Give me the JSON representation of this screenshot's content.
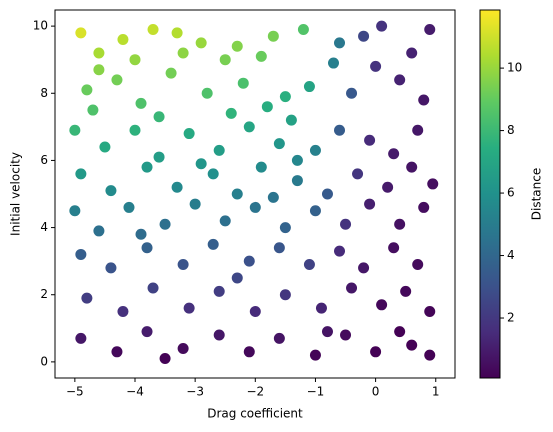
{
  "chart_data": {
    "type": "scatter",
    "xlabel": "Drag coefficient",
    "ylabel": "Initial velocity",
    "colorbar_label": "Distance",
    "colormap": "viridis",
    "x": [
      -4.9,
      -4.6,
      -4.2,
      -3.7,
      -3.3,
      -2.9,
      -2.3,
      -1.7,
      -1.2,
      -0.6,
      -0.2,
      0.1,
      0.6,
      0.9,
      -4.8,
      -4.3,
      -3.9,
      -3.4,
      -2.8,
      -2.2,
      -1.8,
      -1.4,
      -1.1,
      -0.7,
      -0.4,
      0.0,
      0.4,
      0.8,
      -5.0,
      -4.5,
      -4.0,
      -3.6,
      -3.1,
      -2.6,
      -2.1,
      -1.6,
      -1.0,
      -0.6,
      -0.1,
      0.3,
      0.7,
      -4.9,
      -4.4,
      -3.8,
      -3.3,
      -2.7,
      -2.3,
      -1.9,
      -1.3,
      -0.8,
      -0.3,
      0.2,
      0.6,
      0.95,
      -5.0,
      -4.6,
      -4.1,
      -3.5,
      -3.0,
      -2.5,
      -2.0,
      -1.5,
      -1.0,
      -0.5,
      -0.1,
      0.4,
      0.8,
      -4.9,
      -4.4,
      -3.8,
      -3.2,
      -2.7,
      -2.1,
      -1.6,
      -1.1,
      -0.6,
      -0.2,
      0.3,
      0.7,
      -4.8,
      -4.2,
      -3.7,
      -3.1,
      -2.6,
      -2.0,
      -1.5,
      -0.9,
      -0.4,
      0.1,
      0.5,
      0.9,
      -4.9,
      -4.3,
      -3.8,
      -3.2,
      -2.6,
      -2.1,
      -1.6,
      -1.0,
      -0.5,
      0.0,
      0.4,
      0.9,
      -4.6,
      -4.0,
      -3.2,
      -2.5,
      -1.9,
      -1.5,
      -1.3,
      -2.4,
      -3.6,
      -4.7,
      -2.9,
      -1.7,
      -3.9,
      -2.3,
      -0.8,
      0.6,
      -3.5
    ],
    "values": [
      9.8,
      8.7,
      9.6,
      9.9,
      9.8,
      9.5,
      9.4,
      9.7,
      9.9,
      9.5,
      9.7,
      10.0,
      9.2,
      9.9,
      8.1,
      8.4,
      7.7,
      8.6,
      8.0,
      8.3,
      7.6,
      7.2,
      8.2,
      8.9,
      8.0,
      8.8,
      8.4,
      7.8,
      6.9,
      6.4,
      6.9,
      6.1,
      6.8,
      6.3,
      7.0,
      6.5,
      6.3,
      6.9,
      6.6,
      6.2,
      6.9,
      5.6,
      5.1,
      5.8,
      5.2,
      5.6,
      5.0,
      5.8,
      5.4,
      5.0,
      5.6,
      5.2,
      5.8,
      5.3,
      4.5,
      3.9,
      4.6,
      4.1,
      4.7,
      4.2,
      4.6,
      4.0,
      4.5,
      4.1,
      4.7,
      4.1,
      4.6,
      3.2,
      2.8,
      3.4,
      2.9,
      3.5,
      3.0,
      3.4,
      2.9,
      3.3,
      2.8,
      3.4,
      2.9,
      1.9,
      1.5,
      2.2,
      1.6,
      2.1,
      1.5,
      2.0,
      1.6,
      2.2,
      1.7,
      2.1,
      1.5,
      0.7,
      0.3,
      0.9,
      0.4,
      0.8,
      0.3,
      0.7,
      0.2,
      0.8,
      0.3,
      0.9,
      0.2,
      9.2,
      9.0,
      9.2,
      9.0,
      9.1,
      7.9,
      6.0,
      7.4,
      7.3,
      7.5,
      5.9,
      4.9,
      3.8,
      2.5,
      0.9,
      0.5,
      0.1
    ],
    "color_values": [
      11.2,
      9.7,
      10.6,
      10.8,
      10.5,
      10.0,
      9.6,
      9.4,
      8.6,
      4.8,
      2.6,
      1.8,
      1.2,
      1.0,
      9.1,
      9.3,
      8.5,
      9.3,
      8.5,
      8.4,
      7.4,
      6.8,
      6.9,
      5.1,
      3.3,
      1.8,
      1.2,
      0.8,
      7.9,
      7.2,
      7.6,
      6.6,
      7.2,
      6.6,
      7.0,
      6.2,
      5.2,
      3.5,
      1.5,
      0.9,
      0.8,
      6.4,
      5.7,
      6.4,
      5.6,
      5.9,
      5.1,
      5.7,
      4.9,
      3.4,
      1.9,
      0.9,
      0.7,
      0.5,
      5.1,
      4.4,
      5.1,
      4.4,
      5.0,
      4.4,
      4.6,
      3.8,
      3.7,
      1.8,
      1.1,
      0.6,
      0.5,
      3.6,
      3.1,
      3.7,
      3.1,
      3.6,
      3.0,
      3.2,
      2.4,
      1.5,
      0.8,
      0.5,
      0.4,
      2.2,
      1.7,
      2.4,
      1.7,
      2.2,
      1.5,
      1.9,
      1.3,
      0.8,
      0.3,
      0.3,
      0.2,
      0.8,
      0.3,
      1.0,
      0.4,
      0.8,
      0.3,
      0.7,
      0.2,
      0.4,
      0.1,
      0.1,
      0.1,
      10.3,
      9.9,
      9.8,
      9.4,
      9.1,
      7.5,
      5.5,
      7.7,
      7.9,
      8.5,
      6.2,
      4.6,
      4.2,
      2.6,
      0.7,
      0.1,
      0.1
    ],
    "xlim": [
      -5.33,
      1.32
    ],
    "ylim": [
      -0.48,
      10.48
    ],
    "clim": [
      0.08,
      11.86
    ],
    "xticks": [
      {
        "value": -5,
        "label": "−5"
      },
      {
        "value": -4,
        "label": "−4"
      },
      {
        "value": -3,
        "label": "−3"
      },
      {
        "value": -2,
        "label": "−2"
      },
      {
        "value": -1,
        "label": "−1"
      },
      0,
      1
    ],
    "yticks": [
      0,
      2,
      4,
      6,
      8,
      10
    ],
    "cticks": [
      2,
      4,
      6,
      8,
      10
    ]
  }
}
